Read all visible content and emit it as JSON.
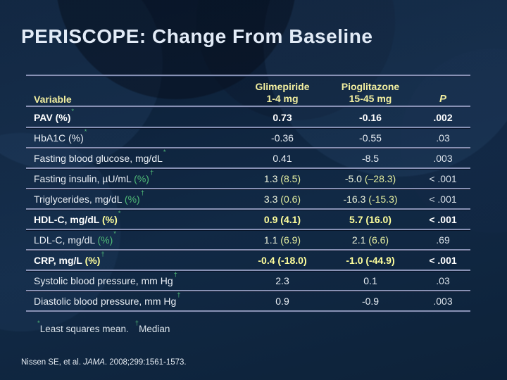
{
  "title": "PERISCOPE: Change From Baseline",
  "colors": {
    "title-color": "#e2ebf7",
    "header-yellow": "#f2efa0",
    "bold-yellow": "#ffff9c",
    "green": "#50bc78",
    "row-white": "#eaeff5",
    "pale-value": "#eff5de",
    "pale-paren": "#e5efa0",
    "p-dim": "#dbe2ea",
    "line": "#8791b4"
  },
  "table": {
    "header": {
      "variable": "Variable",
      "glimepiride_line1": "Glimepiride",
      "glimepiride_line2": "1-4 mg",
      "pioglitazone_line1": "Pioglitazone",
      "pioglitazone_line2": "15-45 mg",
      "p": "P"
    },
    "rows": [
      {
        "label": "PAV (%)",
        "pct": "",
        "marker": "*",
        "glimepiride": "0.73",
        "pioglitazone": "-0.16",
        "p": ".002",
        "style": "bold-white"
      },
      {
        "label": "HbA1C (%)",
        "pct": "",
        "marker": "*",
        "glimepiride": "-0.36",
        "pioglitazone": "-0.55",
        "p": ".03",
        "style": "white"
      },
      {
        "label": "Fasting blood glucose, mg/dL",
        "pct": "",
        "marker": "*",
        "glimepiride": "0.41",
        "pioglitazone": "-8.5",
        "p": ".003",
        "style": "white"
      },
      {
        "label": "Fasting insulin, µU/mL",
        "pct": "(%)",
        "marker": "†",
        "glimepiride": "1.3 (8.5)",
        "pioglitazone": "-5.0 (–28.3)",
        "p": "< .001",
        "style": "pale"
      },
      {
        "label": "Triglycerides, mg/dL",
        "pct": "(%)",
        "marker": "†",
        "glimepiride": "3.3 (0.6)",
        "pioglitazone": "-16.3 (-15.3)",
        "p": "< .001",
        "style": "pale"
      },
      {
        "label": "HDL-C, mg/dL",
        "pct": "(%)",
        "marker": "*",
        "glimepiride": "0.9 (4.1)",
        "pioglitazone": "5.7 (16.0)",
        "p": "< .001",
        "style": "bold-yellow"
      },
      {
        "label": "LDL-C, mg/dL",
        "pct": "(%)",
        "marker": "*",
        "glimepiride": "1.1 (6.9)",
        "pioglitazone": "2.1 (6.6)",
        "p": ".69",
        "style": "pale"
      },
      {
        "label": "CRP, mg/L",
        "pct": "(%)",
        "marker": "†",
        "glimepiride": "-0.4 (-18.0)",
        "pioglitazone": "-1.0 (-44.9)",
        "p": "< .001",
        "style": "bold-yellow"
      },
      {
        "label": "Systolic blood pressure, mm Hg",
        "pct": "",
        "marker": "†",
        "glimepiride": "2.3",
        "pioglitazone": "0.1",
        "p": ".03",
        "style": "white"
      },
      {
        "label": "Diastolic blood pressure, mm Hg",
        "pct": "",
        "marker": "†",
        "glimepiride": "0.9",
        "pioglitazone": "-0.9",
        "p": ".003",
        "style": "white"
      }
    ]
  },
  "footnotes": [
    {
      "marker": "*",
      "text": "Least squares mean."
    },
    {
      "marker": "†",
      "text": "Median"
    }
  ],
  "citation": {
    "prefix": "Nissen SE, et al. ",
    "journal": "JAMA",
    "suffix": ". 2008;299:1561-1573."
  }
}
